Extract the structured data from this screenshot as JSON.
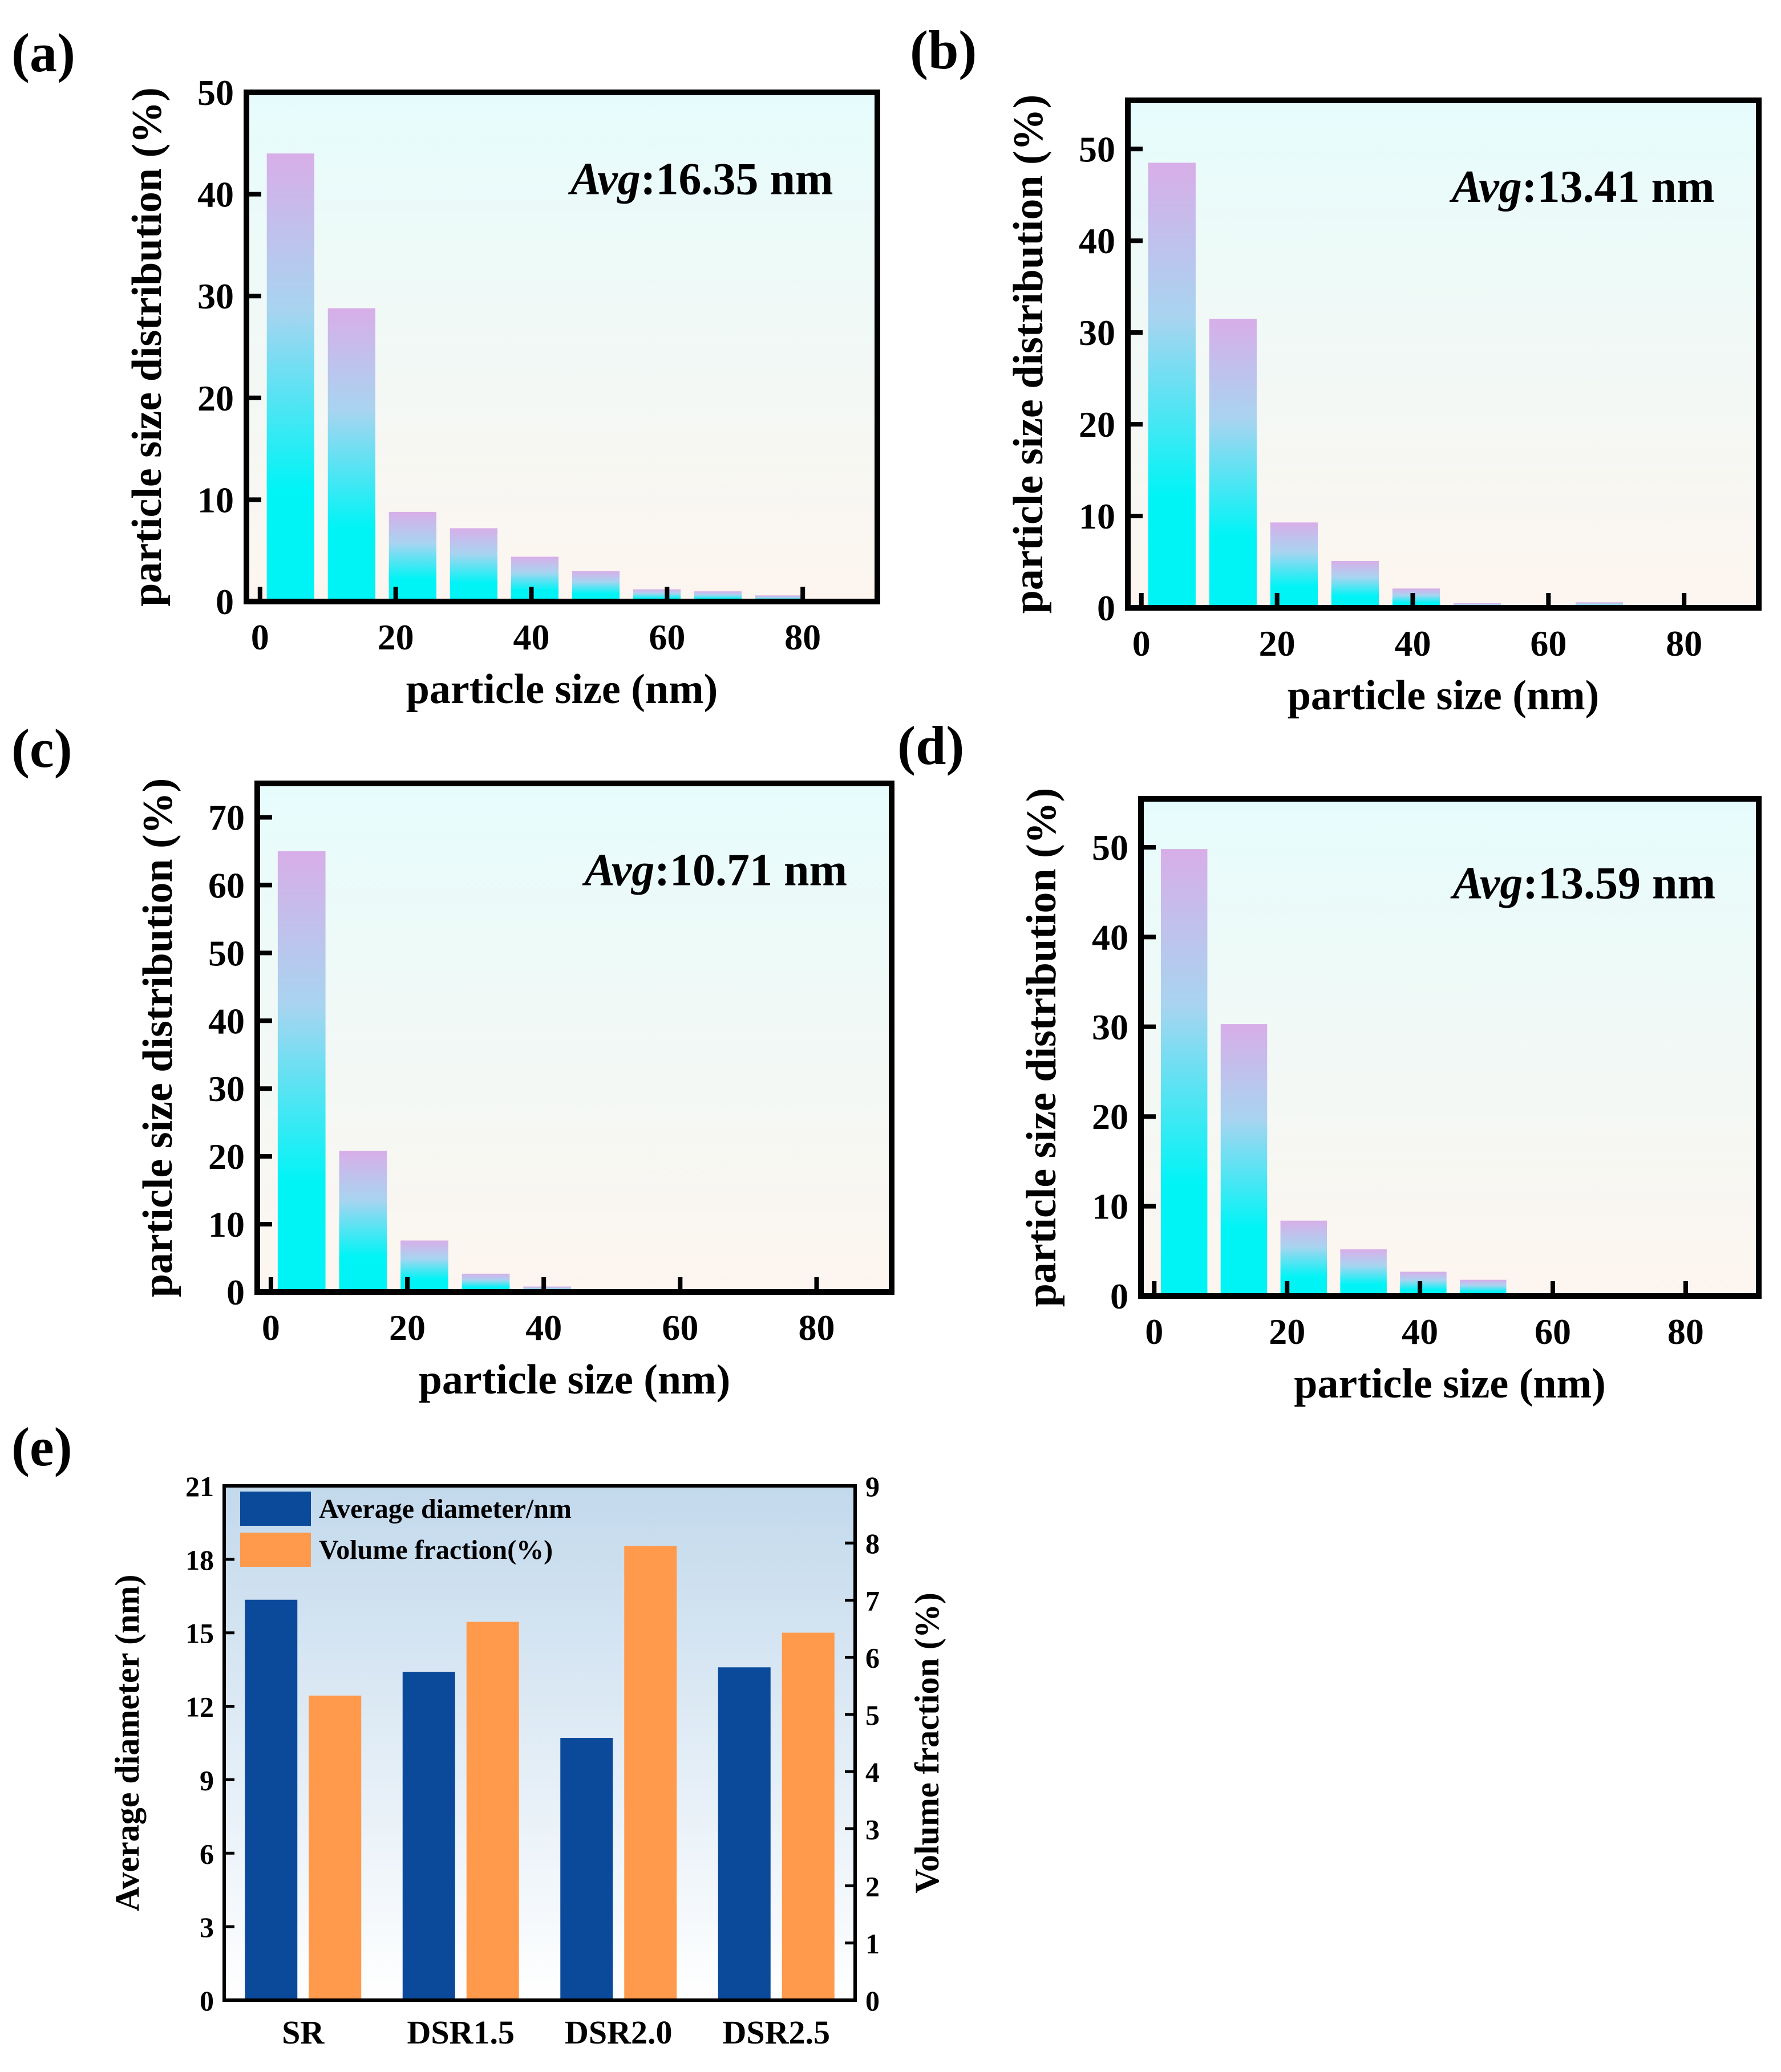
{
  "colors": {
    "bar_top": "#d8aee8",
    "bar_mid": "#a8d4f0",
    "bar_bottom": "#00f4f6",
    "bg_top": "#e6fcfc",
    "bg_bottom": "#fdf5ef",
    "e_bg_top": "#c2d9ec",
    "e_bg_bottom": "#ffffff",
    "avg_diameter": "#0b4a9b",
    "volume_fraction": "#ff9a4c"
  },
  "chart_data": [
    {
      "panel": "(a)",
      "type": "bar",
      "xlabel": "particle size (nm)",
      "ylabel": "particle size distribution (%)",
      "avg_prefix": "Avg",
      "avg_value": ":16.35 nm",
      "x": [
        4.5,
        13.5,
        22.5,
        31.5,
        40.5,
        49.5,
        58.5,
        67.5,
        76.5
      ],
      "values": [
        44.0,
        28.8,
        8.8,
        7.2,
        4.4,
        3.0,
        1.2,
        1.0,
        0.6
      ],
      "xlim": [
        -2,
        91
      ],
      "ylim": [
        0,
        50
      ],
      "xticks": [
        0,
        20,
        40,
        60,
        80
      ],
      "yticks": [
        0,
        10,
        20,
        30,
        40,
        50
      ]
    },
    {
      "panel": "(b)",
      "type": "bar",
      "xlabel": "particle size (nm)",
      "ylabel": "particle size distribution (%)",
      "avg_prefix": "Avg",
      "avg_value": ":13.41 nm",
      "x": [
        4.5,
        13.5,
        22.5,
        31.5,
        40.5,
        49.5,
        58.5,
        67.5,
        76.5
      ],
      "values": [
        48.5,
        31.5,
        9.3,
        5.1,
        2.1,
        0.5,
        0.2,
        0.6,
        0
      ],
      "xlim": [
        -2,
        91
      ],
      "ylim": [
        0,
        55.3
      ],
      "xticks": [
        0,
        20,
        40,
        60,
        80
      ],
      "yticks": [
        0,
        10,
        20,
        30,
        40,
        50
      ]
    },
    {
      "panel": "(c)",
      "type": "bar",
      "xlabel": "particle size (nm)",
      "ylabel": "particle size distribution (%)",
      "avg_prefix": "Avg",
      "avg_value": ":10.71 nm",
      "x": [
        4.5,
        13.5,
        22.5,
        31.5,
        40.5,
        49.5,
        58.5,
        67.5,
        76.5
      ],
      "values": [
        65.0,
        20.8,
        7.6,
        2.7,
        0.8,
        0,
        0.3,
        0,
        0
      ],
      "xlim": [
        -2,
        91
      ],
      "ylim": [
        0,
        75
      ],
      "xticks": [
        0,
        20,
        40,
        60,
        80
      ],
      "yticks": [
        0,
        10,
        20,
        30,
        40,
        50,
        60,
        70
      ]
    },
    {
      "panel": "(d)",
      "type": "bar",
      "xlabel": "particle size (nm)",
      "ylabel": "particle size distribution (%)",
      "avg_prefix": "Avg",
      "avg_value": ":13.59 nm",
      "x": [
        4.5,
        13.5,
        22.5,
        31.5,
        40.5,
        49.5,
        58.5,
        67.5,
        76.5
      ],
      "values": [
        49.8,
        30.3,
        8.4,
        5.2,
        2.7,
        1.8,
        0,
        0,
        0
      ],
      "xlim": [
        -2,
        91
      ],
      "ylim": [
        0,
        55.4
      ],
      "xticks": [
        0,
        20,
        40,
        60,
        80
      ],
      "yticks": [
        0,
        10,
        20,
        30,
        40,
        50
      ]
    },
    {
      "panel": "(e)",
      "type": "bar",
      "categories": [
        "SR",
        "DSR1.5",
        "DSR2.0",
        "DSR2.5"
      ],
      "series": [
        {
          "name": "Average diameter/nm",
          "axis": "left",
          "values": [
            16.35,
            13.41,
            10.71,
            13.59
          ]
        },
        {
          "name": "Volume fraction(%)",
          "axis": "right",
          "values": [
            5.33,
            6.62,
            7.95,
            6.43
          ]
        }
      ],
      "ylabel": "Average diameter (nm)",
      "y2label": "Volume fraction (%)",
      "ylim": [
        0,
        21
      ],
      "y2lim": [
        0,
        9
      ],
      "yticks": [
        0,
        3,
        6,
        9,
        12,
        15,
        18,
        21
      ],
      "y2ticks": [
        0,
        1,
        2,
        3,
        4,
        5,
        6,
        7,
        8,
        9
      ],
      "legend": "top-left"
    }
  ]
}
